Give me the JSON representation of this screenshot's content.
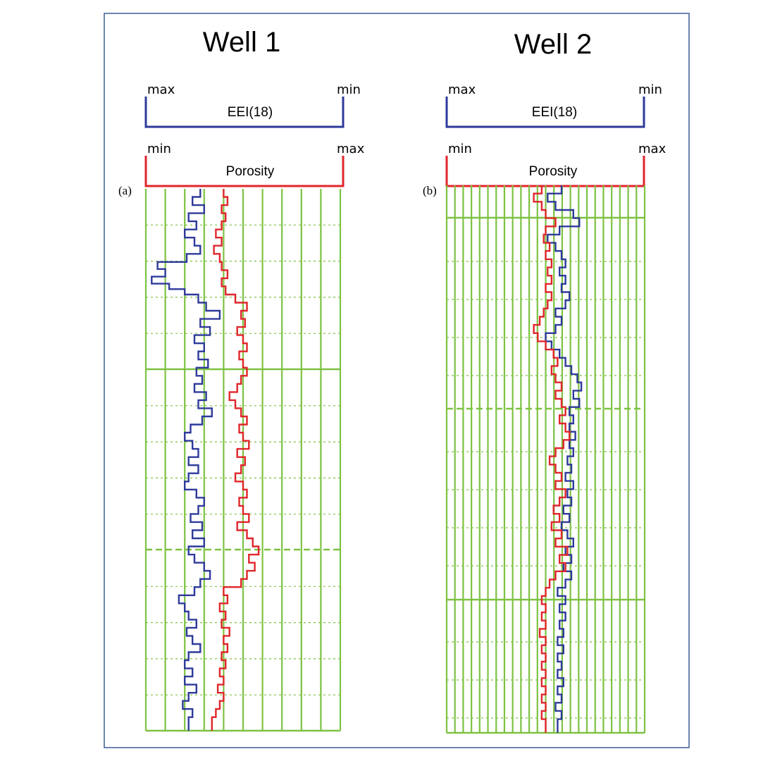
{
  "chart_data": [
    {
      "type": "line",
      "title": "Well 1",
      "panel_label": "(a)",
      "grid": true,
      "legend": "none",
      "scales": [
        {
          "label": "EEI(18)",
          "left": "max",
          "right": "min",
          "color": "#2e3a9a"
        },
        {
          "label": "Porosity",
          "left": "min",
          "right": "max",
          "color": "#e0262a"
        }
      ],
      "depth_range": [
        0,
        100
      ],
      "xlim": [
        0,
        1
      ],
      "series": [
        {
          "name": "",
          "color": "#2e3a9a",
          "steps": [
            [
              0,
              0.28
            ],
            [
              1.5,
              0.24
            ],
            [
              3,
              0.3
            ],
            [
              4.5,
              0.22
            ],
            [
              6,
              0.26
            ],
            [
              7.5,
              0.2
            ],
            [
              9,
              0.25
            ],
            [
              10.5,
              0.28
            ],
            [
              12,
              0.21
            ],
            [
              13.5,
              0.06
            ],
            [
              14.8,
              0.1
            ],
            [
              16.2,
              0.03
            ],
            [
              17.5,
              0.12
            ],
            [
              18.5,
              0.2
            ],
            [
              19.5,
              0.27
            ],
            [
              21,
              0.31
            ],
            [
              22.5,
              0.38
            ],
            [
              24,
              0.28
            ],
            [
              25.5,
              0.33
            ],
            [
              27,
              0.25
            ],
            [
              28.5,
              0.3
            ],
            [
              30,
              0.27
            ],
            [
              31.5,
              0.32
            ],
            [
              33,
              0.26
            ],
            [
              34.5,
              0.29
            ],
            [
              36,
              0.25
            ],
            [
              37.5,
              0.31
            ],
            [
              39,
              0.27
            ],
            [
              40.5,
              0.34
            ],
            [
              42,
              0.29
            ],
            [
              43.5,
              0.23
            ],
            [
              45,
              0.2
            ],
            [
              46.5,
              0.24
            ],
            [
              48,
              0.27
            ],
            [
              49.5,
              0.22
            ],
            [
              51,
              0.27
            ],
            [
              52.5,
              0.22
            ],
            [
              54,
              0.2
            ],
            [
              55.5,
              0.26
            ],
            [
              57,
              0.3
            ],
            [
              58.5,
              0.27
            ],
            [
              60,
              0.23
            ],
            [
              61.5,
              0.29
            ],
            [
              63,
              0.24
            ],
            [
              64.5,
              0.3
            ],
            [
              66,
              0.22
            ],
            [
              67.5,
              0.25
            ],
            [
              69,
              0.3
            ],
            [
              70.5,
              0.33
            ],
            [
              72,
              0.28
            ],
            [
              73.5,
              0.25
            ],
            [
              75,
              0.17
            ],
            [
              76.5,
              0.2
            ],
            [
              78,
              0.22
            ],
            [
              79.5,
              0.26
            ],
            [
              81,
              0.21
            ],
            [
              82.5,
              0.24
            ],
            [
              84,
              0.28
            ],
            [
              85.5,
              0.22
            ],
            [
              87,
              0.2
            ],
            [
              88.5,
              0.24
            ],
            [
              90,
              0.2
            ],
            [
              91.5,
              0.26
            ],
            [
              93,
              0.22
            ],
            [
              94.5,
              0.19
            ],
            [
              96,
              0.24
            ],
            [
              97.5,
              0.22
            ]
          ]
        },
        {
          "name": "",
          "color": "#e0262a",
          "steps": [
            [
              0,
              0.4
            ],
            [
              1.5,
              0.42
            ],
            [
              3,
              0.39
            ],
            [
              4.5,
              0.41
            ],
            [
              6,
              0.39
            ],
            [
              7.5,
              0.36
            ],
            [
              9,
              0.39
            ],
            [
              10.5,
              0.35
            ],
            [
              12,
              0.38
            ],
            [
              13.5,
              0.39
            ],
            [
              15,
              0.42
            ],
            [
              16.5,
              0.39
            ],
            [
              18,
              0.41
            ],
            [
              19.5,
              0.46
            ],
            [
              21,
              0.52
            ],
            [
              22.5,
              0.49
            ],
            [
              24,
              0.51
            ],
            [
              25.5,
              0.47
            ],
            [
              27,
              0.5
            ],
            [
              28.5,
              0.52
            ],
            [
              30,
              0.48
            ],
            [
              31.5,
              0.5
            ],
            [
              33,
              0.52
            ],
            [
              34.5,
              0.49
            ],
            [
              36,
              0.47
            ],
            [
              37.5,
              0.43
            ],
            [
              39,
              0.46
            ],
            [
              40.5,
              0.49
            ],
            [
              42,
              0.52
            ],
            [
              43.5,
              0.48
            ],
            [
              45,
              0.5
            ],
            [
              46.5,
              0.53
            ],
            [
              48,
              0.47
            ],
            [
              49.5,
              0.51
            ],
            [
              51,
              0.49
            ],
            [
              52.5,
              0.46
            ],
            [
              54,
              0.5
            ],
            [
              55.5,
              0.52
            ],
            [
              57,
              0.48
            ],
            [
              58.5,
              0.5
            ],
            [
              60,
              0.53
            ],
            [
              61.5,
              0.47
            ],
            [
              63,
              0.52
            ],
            [
              64.5,
              0.55
            ],
            [
              66,
              0.58
            ],
            [
              67.5,
              0.53
            ],
            [
              69,
              0.56
            ],
            [
              70.5,
              0.52
            ],
            [
              72,
              0.49
            ],
            [
              73.5,
              0.4
            ],
            [
              75,
              0.42
            ],
            [
              76.5,
              0.38
            ],
            [
              78,
              0.41
            ],
            [
              79.5,
              0.39
            ],
            [
              81,
              0.43
            ],
            [
              82.5,
              0.4
            ],
            [
              84,
              0.42
            ],
            [
              85.5,
              0.39
            ],
            [
              87,
              0.41
            ],
            [
              88.5,
              0.38
            ],
            [
              90,
              0.4
            ],
            [
              91.5,
              0.37
            ],
            [
              93,
              0.4
            ],
            [
              94.5,
              0.38
            ],
            [
              96,
              0.36
            ],
            [
              97.5,
              0.34
            ]
          ]
        }
      ]
    },
    {
      "type": "line",
      "title": "Well 2",
      "panel_label": "(b)",
      "grid": true,
      "legend": "none",
      "scales": [
        {
          "label": "EEI(18)",
          "left": "max",
          "right": "min",
          "color": "#2e3a9a"
        },
        {
          "label": "Porosity",
          "left": "min",
          "right": "max",
          "color": "#e0262a"
        }
      ],
      "depth_range": [
        0,
        100
      ],
      "xlim": [
        0,
        1
      ],
      "series": [
        {
          "name": "",
          "color": "#2e3a9a",
          "steps": [
            [
              0,
              0.58
            ],
            [
              1.5,
              0.51
            ],
            [
              3,
              0.55
            ],
            [
              4.5,
              0.64
            ],
            [
              6,
              0.67
            ],
            [
              7.5,
              0.57
            ],
            [
              9,
              0.51
            ],
            [
              10.5,
              0.55
            ],
            [
              12,
              0.58
            ],
            [
              13.5,
              0.6
            ],
            [
              15,
              0.57
            ],
            [
              16.5,
              0.6
            ],
            [
              18,
              0.58
            ],
            [
              19.5,
              0.62
            ],
            [
              21,
              0.6
            ],
            [
              22.5,
              0.55
            ],
            [
              24,
              0.58
            ],
            [
              25.5,
              0.55
            ],
            [
              27,
              0.5
            ],
            [
              28.5,
              0.53
            ],
            [
              30,
              0.57
            ],
            [
              31.5,
              0.6
            ],
            [
              33,
              0.63
            ],
            [
              34.5,
              0.66
            ],
            [
              36,
              0.68
            ],
            [
              37.5,
              0.64
            ],
            [
              39,
              0.67
            ],
            [
              40.5,
              0.62
            ],
            [
              42,
              0.64
            ],
            [
              43.5,
              0.62
            ],
            [
              45,
              0.65
            ],
            [
              46.5,
              0.62
            ],
            [
              48,
              0.64
            ],
            [
              49.5,
              0.61
            ],
            [
              51,
              0.63
            ],
            [
              52.5,
              0.6
            ],
            [
              54,
              0.64
            ],
            [
              55.5,
              0.61
            ],
            [
              57,
              0.63
            ],
            [
              58.5,
              0.59
            ],
            [
              60,
              0.62
            ],
            [
              61.5,
              0.58
            ],
            [
              63,
              0.61
            ],
            [
              64.5,
              0.64
            ],
            [
              66,
              0.6
            ],
            [
              67.5,
              0.63
            ],
            [
              69,
              0.59
            ],
            [
              70.5,
              0.63
            ],
            [
              72,
              0.6
            ],
            [
              73.5,
              0.56
            ],
            [
              75,
              0.6
            ],
            [
              76.5,
              0.57
            ],
            [
              78,
              0.6
            ],
            [
              79.5,
              0.57
            ],
            [
              81,
              0.59
            ],
            [
              82.5,
              0.56
            ],
            [
              84,
              0.59
            ],
            [
              85.5,
              0.56
            ],
            [
              87,
              0.58
            ],
            [
              88.5,
              0.56
            ],
            [
              90,
              0.59
            ],
            [
              91.5,
              0.56
            ],
            [
              93,
              0.58
            ],
            [
              94.5,
              0.55
            ],
            [
              96,
              0.58
            ],
            [
              97.5,
              0.56
            ]
          ]
        },
        {
          "name": "",
          "color": "#e0262a",
          "steps": [
            [
              0,
              0.48
            ],
            [
              1.5,
              0.44
            ],
            [
              3,
              0.48
            ],
            [
              4.5,
              0.5
            ],
            [
              6,
              0.55
            ],
            [
              7.5,
              0.5
            ],
            [
              9,
              0.49
            ],
            [
              10.5,
              0.52
            ],
            [
              12,
              0.5
            ],
            [
              13.5,
              0.53
            ],
            [
              15,
              0.51
            ],
            [
              16.5,
              0.53
            ],
            [
              18,
              0.5
            ],
            [
              19.5,
              0.53
            ],
            [
              21,
              0.51
            ],
            [
              22.5,
              0.49
            ],
            [
              24,
              0.47
            ],
            [
              25.5,
              0.44
            ],
            [
              27,
              0.46
            ],
            [
              28.5,
              0.5
            ],
            [
              30,
              0.54
            ],
            [
              31.5,
              0.56
            ],
            [
              33,
              0.53
            ],
            [
              34.5,
              0.55
            ],
            [
              36,
              0.58
            ],
            [
              37.5,
              0.55
            ],
            [
              39,
              0.58
            ],
            [
              40.5,
              0.6
            ],
            [
              42,
              0.57
            ],
            [
              43.5,
              0.6
            ],
            [
              45,
              0.62
            ],
            [
              46.5,
              0.59
            ],
            [
              48,
              0.55
            ],
            [
              49.5,
              0.52
            ],
            [
              51,
              0.55
            ],
            [
              52.5,
              0.58
            ],
            [
              54,
              0.55
            ],
            [
              55.5,
              0.6
            ],
            [
              57,
              0.57
            ],
            [
              58.5,
              0.54
            ],
            [
              60,
              0.57
            ],
            [
              61.5,
              0.53
            ],
            [
              63,
              0.58
            ],
            [
              64.5,
              0.55
            ],
            [
              66,
              0.61
            ],
            [
              67.5,
              0.57
            ],
            [
              69,
              0.6
            ],
            [
              70.5,
              0.55
            ],
            [
              72,
              0.52
            ],
            [
              73.5,
              0.5
            ],
            [
              75,
              0.48
            ],
            [
              76.5,
              0.5
            ],
            [
              78,
              0.48
            ],
            [
              79.5,
              0.5
            ],
            [
              81,
              0.47
            ],
            [
              82.5,
              0.5
            ],
            [
              84,
              0.48
            ],
            [
              85.5,
              0.5
            ],
            [
              87,
              0.48
            ],
            [
              88.5,
              0.5
            ],
            [
              90,
              0.48
            ],
            [
              91.5,
              0.5
            ],
            [
              93,
              0.48
            ],
            [
              94.5,
              0.5
            ],
            [
              96,
              0.48
            ],
            [
              97.5,
              0.5
            ]
          ]
        }
      ]
    }
  ]
}
